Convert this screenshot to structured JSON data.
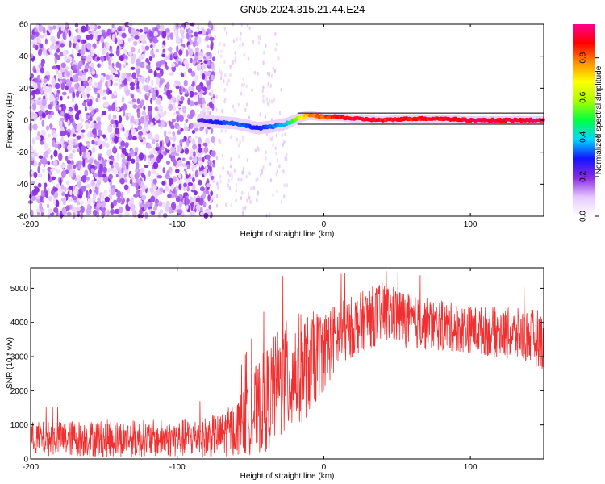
{
  "title": "GN05.2024.315.21.44.E24",
  "chart_data": [
    {
      "type": "heatmap",
      "xlabel": "Height of straight line (km)",
      "ylabel": "Frequency (Hz)",
      "xlim": [
        -200,
        150
      ],
      "ylim": [
        -60,
        60
      ],
      "xticks": [
        -200,
        -100,
        0,
        100
      ],
      "yticks": [
        -60,
        -40,
        -20,
        0,
        20,
        40,
        60
      ],
      "colorbar": {
        "label": "Normalized spectral amplitude",
        "range": [
          0,
          0.97
        ],
        "ticks": [
          0.0,
          0.2,
          0.4,
          0.6,
          0.8
        ],
        "tick_labels": [
          "0.0",
          "0.2",
          "0.4",
          "0.6",
          "0.8"
        ],
        "colors": [
          "#ffffff",
          "#e6c8ff",
          "#8a2be2",
          "#1414ff",
          "#00d8ff",
          "#00ff40",
          "#aaff00",
          "#ffff00",
          "#ff9000",
          "#ff0000",
          "#ff0090"
        ]
      },
      "noise_region": {
        "x_range": [
          -200,
          -75
        ],
        "amplitude_range": [
          0.05,
          0.2
        ]
      },
      "ridge": {
        "x": [
          -85,
          -75,
          -60,
          -45,
          -35,
          -25,
          -20,
          -15,
          -10,
          0,
          10,
          20,
          40,
          60,
          80,
          100,
          120,
          140,
          150
        ],
        "freq": [
          0,
          -1,
          -2,
          -5,
          -4,
          -2,
          0,
          2,
          3,
          2,
          2,
          1,
          0,
          1,
          1,
          0,
          0,
          0,
          0
        ],
        "amplitude": [
          0.25,
          0.3,
          0.35,
          0.3,
          0.35,
          0.4,
          0.55,
          0.7,
          0.8,
          0.88,
          0.92,
          0.95,
          0.93,
          0.9,
          0.94,
          0.95,
          0.95,
          0.95,
          0.95
        ]
      }
    },
    {
      "type": "line",
      "xlabel": "Height of straight line (km)",
      "ylabel": "SNR (10 * v/v)",
      "xlim": [
        -200,
        150
      ],
      "ylim": [
        0,
        5600
      ],
      "xticks": [
        -200,
        -100,
        0,
        100
      ],
      "yticks": [
        0,
        1000,
        2000,
        3000,
        4000,
        5000
      ],
      "series": [
        {
          "color": "#f03030",
          "envelope_x": [
            -200,
            -150,
            -100,
            -80,
            -70,
            -60,
            -50,
            -40,
            -30,
            -20,
            -10,
            0,
            10,
            20,
            30,
            40,
            50,
            60,
            80,
            100,
            120,
            140,
            150
          ],
          "envelope_mean": [
            600,
            600,
            600,
            650,
            700,
            900,
            1300,
            1700,
            2200,
            2500,
            2800,
            3200,
            3600,
            3900,
            4100,
            4300,
            4200,
            4000,
            3900,
            3800,
            3700,
            3600,
            3500
          ],
          "envelope_spread": [
            500,
            550,
            550,
            600,
            650,
            800,
            1200,
            1500,
            1700,
            1800,
            1500,
            1200,
            1000,
            900,
            900,
            900,
            850,
            800,
            750,
            700,
            750,
            800,
            900
          ],
          "peak_max": 5500
        }
      ]
    }
  ]
}
